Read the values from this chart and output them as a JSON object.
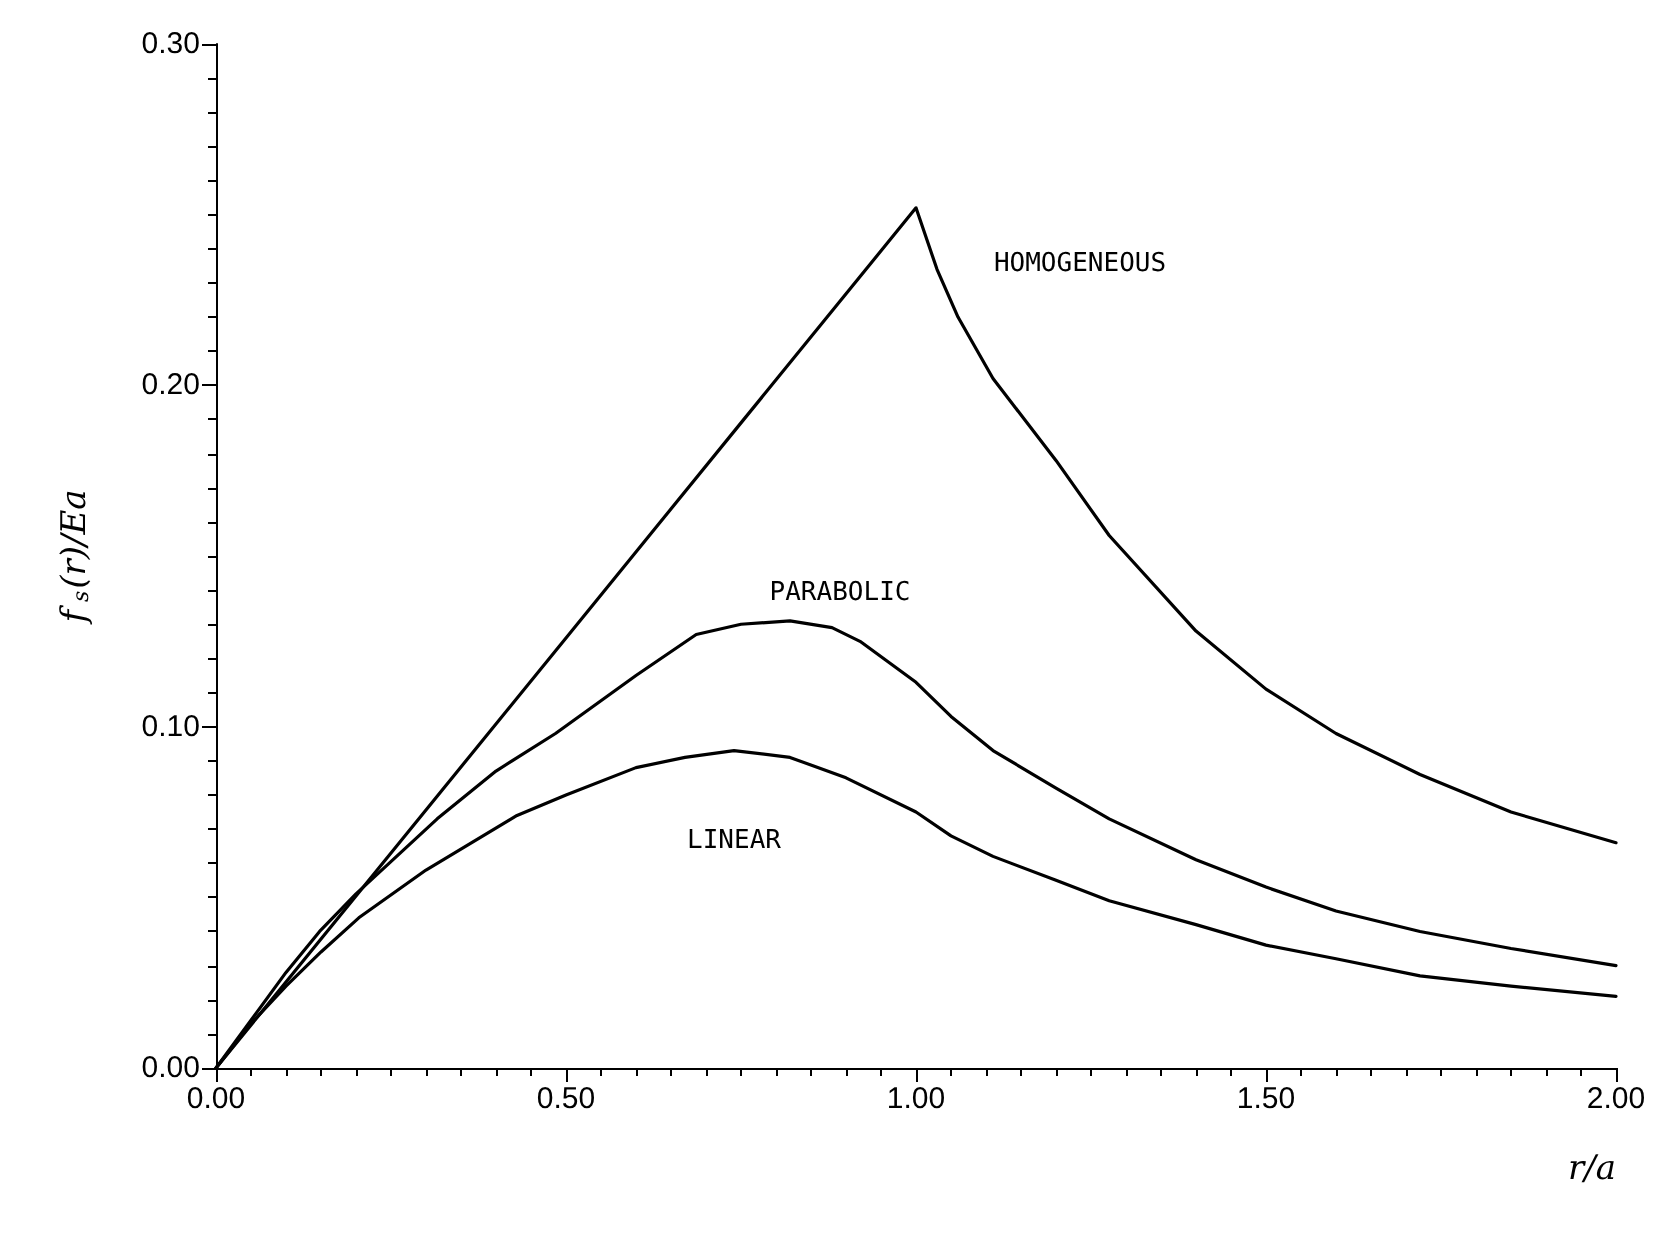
{
  "chart_data": {
    "type": "line",
    "xlabel": "r/a",
    "ylabel": "f$_{s}$(r)/Ea",
    "x": [
      0,
      0.25,
      0.5,
      0.75,
      1.0,
      1.03,
      1.06,
      1.11,
      1.2,
      1.276,
      1.4,
      1.5,
      1.6,
      1.72,
      1.85,
      2.0
    ],
    "series": [
      {
        "name": "HOMOGENEOUS",
        "color": "#000000",
        "values": [
          0,
          0.063,
          0.126,
          0.189,
          0.252,
          0.234,
          0.22,
          0.202,
          0.178,
          0.156,
          0.128,
          0.111,
          0.098,
          0.086,
          0.075,
          0.066
        ]
      },
      {
        "name": "PARABOLIC",
        "color": "#000000",
        "x": [
          0,
          0.05,
          0.1,
          0.148,
          0.2,
          0.316,
          0.4,
          0.485,
          0.6,
          0.686,
          0.75,
          0.82,
          0.88,
          0.92,
          0.96,
          1.0,
          1.05,
          1.11,
          1.2,
          1.276,
          1.4,
          1.5,
          1.6,
          1.72,
          1.85,
          2.0
        ],
        "values": [
          0,
          0.014,
          0.028,
          0.04,
          0.051,
          0.073,
          0.087,
          0.098,
          0.115,
          0.127,
          0.13,
          0.131,
          0.129,
          0.125,
          0.119,
          0.113,
          0.103,
          0.093,
          0.082,
          0.073,
          0.061,
          0.053,
          0.046,
          0.04,
          0.035,
          0.03
        ]
      },
      {
        "name": "LINEAR",
        "color": "#000000",
        "x": [
          0,
          0.05,
          0.1,
          0.15,
          0.204,
          0.3,
          0.43,
          0.5,
          0.6,
          0.67,
          0.74,
          0.82,
          0.9,
          1.0,
          1.05,
          1.11,
          1.2,
          1.276,
          1.4,
          1.5,
          1.6,
          1.72,
          1.85,
          2.0
        ],
        "values": [
          0,
          0.013,
          0.024,
          0.034,
          0.044,
          0.058,
          0.074,
          0.08,
          0.088,
          0.091,
          0.093,
          0.091,
          0.085,
          0.075,
          0.068,
          0.062,
          0.055,
          0.049,
          0.042,
          0.036,
          0.032,
          0.027,
          0.024,
          0.021
        ]
      }
    ],
    "xlim": [
      0,
      2
    ],
    "ylim": [
      0,
      0.3
    ],
    "xticks": [
      {
        "value": 0,
        "label": "0.00"
      },
      {
        "value": 0.5,
        "label": "0.50"
      },
      {
        "value": 1,
        "label": "1.00"
      },
      {
        "value": 1.5,
        "label": "1.50"
      },
      {
        "value": 2,
        "label": "2.00"
      }
    ],
    "yticks": [
      {
        "value": 0,
        "label": "0.00"
      },
      {
        "value": 0.1,
        "label": "0.10"
      },
      {
        "value": 0.2,
        "label": "0.20"
      },
      {
        "value": 0.3,
        "label": "0.30"
      }
    ],
    "grid": false,
    "legend": false,
    "marker": "none",
    "line_style": "solid"
  }
}
